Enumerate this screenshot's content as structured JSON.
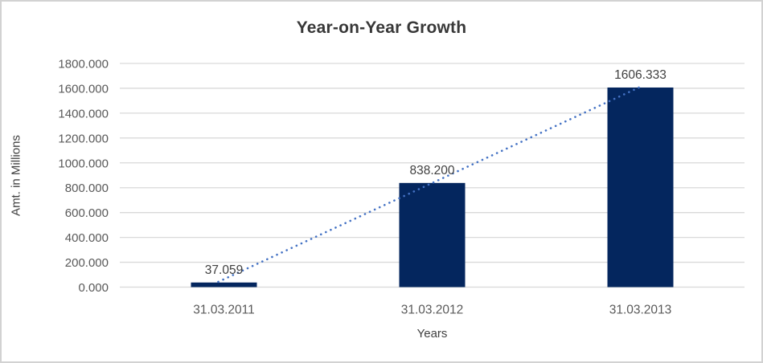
{
  "chart_data": {
    "type": "bar",
    "title": "Year-on-Year Growth",
    "xlabel": "Years",
    "ylabel": "Amt. in Millions",
    "categories": [
      "31.03.2011",
      "31.03.2012",
      "31.03.2013"
    ],
    "series": [
      {
        "name": "Amt. in Millions",
        "values": [
          37.059,
          838.2,
          1606.333
        ]
      }
    ],
    "value_labels": [
      "37.059",
      "838.200",
      "1606.333"
    ],
    "ylim": [
      0,
      1800
    ],
    "ytick_step": 200,
    "ytick_labels": [
      "0.000",
      "200.000",
      "400.000",
      "600.000",
      "800.000",
      "1000.000",
      "1200.000",
      "1400.000",
      "1600.000",
      "1800.000"
    ],
    "grid": true,
    "legend_position": "none",
    "trendline": {
      "type": "linear",
      "style": "dotted"
    },
    "colors": {
      "bar": "#04265E",
      "trendline": "#4472C4",
      "gridline": "#D9D9D9",
      "title_text": "#383838",
      "axis_title_text": "#404040",
      "tick_text": "#595959",
      "data_label_text": "#404040",
      "frame_border": "#D2D2D2",
      "background": "#FFFFFF"
    }
  }
}
